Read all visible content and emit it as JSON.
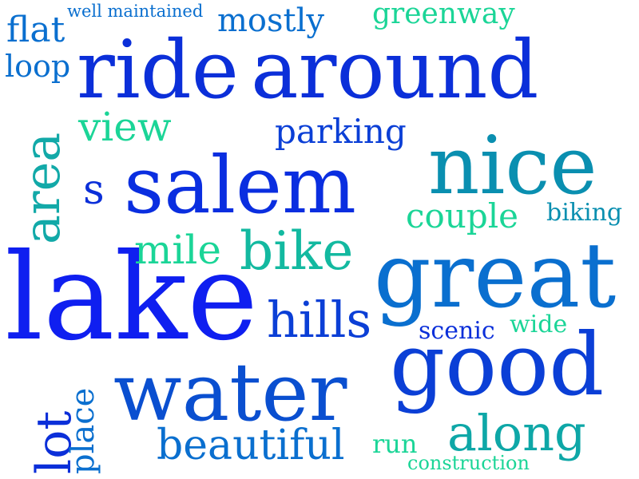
{
  "words": {
    "ride": {
      "text": "ride",
      "color": "#0b2fd9"
    },
    "around": {
      "text": "around",
      "color": "#0b2fd9"
    },
    "lake": {
      "text": "lake",
      "color": "#0f1ff0"
    },
    "salem": {
      "text": "salem",
      "color": "#0a2ee0"
    },
    "great": {
      "text": "great",
      "color": "#0a6fcf"
    },
    "good": {
      "text": "good",
      "color": "#0b3fd6"
    },
    "water": {
      "text": "water",
      "color": "#0a4fd0"
    },
    "nice": {
      "text": "nice",
      "color": "#0a8fb0"
    },
    "bike": {
      "text": "bike",
      "color": "#13b9a0"
    },
    "area": {
      "text": "area",
      "color": "#12a9a8"
    },
    "view": {
      "text": "view",
      "color": "#1bd597"
    },
    "parking": {
      "text": "parking",
      "color": "#0b3fd6"
    },
    "s": {
      "text": "s",
      "color": "#0b2fd9"
    },
    "couple": {
      "text": "couple",
      "color": "#1bd597"
    },
    "biking": {
      "text": "biking",
      "color": "#0a8fb0"
    },
    "mile": {
      "text": "mile",
      "color": "#1bd597"
    },
    "hills": {
      "text": "hills",
      "color": "#0b3fd6"
    },
    "scenic": {
      "text": "scenic",
      "color": "#0b2fd9"
    },
    "wide": {
      "text": "wide",
      "color": "#1bd597"
    },
    "lot": {
      "text": "lot",
      "color": "#0b2fd9"
    },
    "place": {
      "text": "place",
      "color": "#0a6fcf"
    },
    "beautiful": {
      "text": "beautiful",
      "color": "#0a6fcf"
    },
    "run": {
      "text": "run",
      "color": "#1bd597"
    },
    "along": {
      "text": "along",
      "color": "#0ea7a7"
    },
    "construction": {
      "text": "construction",
      "color": "#1bd597"
    },
    "flat": {
      "text": "flat",
      "color": "#0a6fcf"
    },
    "well_maintained": {
      "text": "well maintained",
      "color": "#0a6fcf"
    },
    "mostly": {
      "text": "mostly",
      "color": "#0a6fcf"
    },
    "greenway": {
      "text": "greenway",
      "color": "#1bd597"
    },
    "loop": {
      "text": "loop",
      "color": "#0a6fcf"
    }
  }
}
